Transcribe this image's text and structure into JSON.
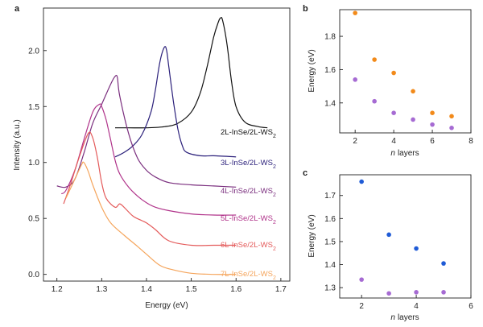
{
  "chart_data": [
    {
      "panel": "a",
      "type": "line",
      "xlabel": "Energy (eV)",
      "ylabel": "Intensity (a.u.)",
      "xlim": [
        1.17,
        1.72
      ],
      "ylim": [
        -0.06,
        2.38
      ],
      "xticks": [
        "1.2",
        "1.3",
        "1.4",
        "1.5",
        "1.6",
        "1.7"
      ],
      "yticks": [
        "0.0",
        "0.5",
        "1.0",
        "1.5",
        "2.0"
      ],
      "series": [
        {
          "name": "2L-InSe/2L-WS",
          "sub": "2",
          "color": "#111111",
          "x": [
            1.33,
            1.36,
            1.4,
            1.44,
            1.47,
            1.5,
            1.52,
            1.535,
            1.55,
            1.56,
            1.565,
            1.57,
            1.58,
            1.59,
            1.6,
            1.62,
            1.65,
            1.67
          ],
          "y": [
            1.31,
            1.31,
            1.31,
            1.32,
            1.35,
            1.45,
            1.62,
            1.85,
            2.12,
            2.25,
            2.29,
            2.27,
            2.05,
            1.72,
            1.5,
            1.36,
            1.32,
            1.31
          ]
        },
        {
          "name": "3L-InSe/2L-WS",
          "sub": "2",
          "color": "#2a1f7a",
          "x": [
            1.33,
            1.35,
            1.37,
            1.39,
            1.41,
            1.42,
            1.43,
            1.44,
            1.445,
            1.45,
            1.46,
            1.47,
            1.48,
            1.49,
            1.52,
            1.55,
            1.6
          ],
          "y": [
            1.05,
            1.09,
            1.15,
            1.25,
            1.45,
            1.65,
            1.9,
            2.03,
            2.0,
            1.85,
            1.55,
            1.3,
            1.15,
            1.09,
            1.06,
            1.06,
            1.05
          ]
        },
        {
          "name": "4L-InSe/2L-WS",
          "sub": "2",
          "color": "#7a2e7e",
          "x": [
            1.2,
            1.22,
            1.24,
            1.26,
            1.28,
            1.3,
            1.32,
            1.33,
            1.335,
            1.34,
            1.36,
            1.38,
            1.4,
            1.42,
            1.45,
            1.5,
            1.55,
            1.6
          ],
          "y": [
            0.79,
            0.78,
            0.85,
            1.08,
            1.35,
            1.52,
            1.7,
            1.77,
            1.76,
            1.6,
            1.26,
            1.04,
            0.93,
            0.87,
            0.82,
            0.8,
            0.79,
            0.78
          ]
        },
        {
          "name": "5L-InSe/2L-WS",
          "sub": "2",
          "color": "#b0338a",
          "x": [
            1.21,
            1.22,
            1.24,
            1.26,
            1.28,
            1.295,
            1.3,
            1.31,
            1.32,
            1.33,
            1.34,
            1.36,
            1.38,
            1.4,
            1.42,
            1.45,
            1.5,
            1.55,
            1.6
          ],
          "y": [
            0.72,
            0.75,
            0.93,
            1.2,
            1.45,
            1.52,
            1.5,
            1.38,
            1.2,
            1.02,
            0.9,
            0.78,
            0.7,
            0.64,
            0.6,
            0.57,
            0.54,
            0.53,
            0.53
          ]
        },
        {
          "name": "6L-InSe/2L-WS",
          "sub": "2",
          "color": "#e45a5a",
          "x": [
            1.215,
            1.23,
            1.25,
            1.27,
            1.28,
            1.29,
            1.3,
            1.31,
            1.33,
            1.34,
            1.35,
            1.37,
            1.39,
            1.4,
            1.42,
            1.45,
            1.5,
            1.55,
            1.6
          ],
          "y": [
            0.63,
            0.8,
            1.05,
            1.26,
            1.22,
            1.05,
            0.82,
            0.68,
            0.6,
            0.63,
            0.6,
            0.52,
            0.48,
            0.46,
            0.4,
            0.3,
            0.26,
            0.26,
            0.26
          ]
        },
        {
          "name": "7L-InSe/2L-WS",
          "sub": "2",
          "color": "#f5a55c",
          "x": [
            1.22,
            1.24,
            1.255,
            1.26,
            1.27,
            1.28,
            1.3,
            1.32,
            1.35,
            1.38,
            1.4,
            1.43,
            1.46,
            1.5,
            1.55,
            1.6
          ],
          "y": [
            0.68,
            0.85,
            0.98,
            1.0,
            0.92,
            0.8,
            0.6,
            0.46,
            0.35,
            0.25,
            0.18,
            0.08,
            0.04,
            0.01,
            0.0,
            0.0
          ]
        }
      ]
    },
    {
      "panel": "b",
      "type": "scatter",
      "xlabel": "layers",
      "xlabel_italic": "n",
      "ylabel": "Energy (eV)",
      "xlim": [
        1.2,
        8
      ],
      "ylim": [
        1.22,
        1.96
      ],
      "xticks": [
        "2",
        "4",
        "6",
        "8"
      ],
      "yticks": [
        "1.4",
        "1.6",
        "1.8"
      ],
      "series": [
        {
          "name": "orange",
          "color": "#f28a1a",
          "x": [
            2,
            3,
            4,
            5,
            6,
            7
          ],
          "y": [
            1.94,
            1.66,
            1.58,
            1.47,
            1.34,
            1.32
          ]
        },
        {
          "name": "purple",
          "color": "#a66bd3",
          "x": [
            2,
            3,
            4,
            5,
            6,
            7
          ],
          "y": [
            1.54,
            1.41,
            1.34,
            1.3,
            1.27,
            1.25
          ]
        }
      ]
    },
    {
      "panel": "c",
      "type": "scatter",
      "xlabel": "layers",
      "xlabel_italic": "n",
      "ylabel": "Energy (eV)",
      "xlim": [
        1.2,
        6
      ],
      "ylim": [
        1.255,
        1.79
      ],
      "xticks": [
        "2",
        "4",
        "6"
      ],
      "yticks": [
        "1.3",
        "1.4",
        "1.5",
        "1.6",
        "1.7"
      ],
      "series": [
        {
          "name": "blue",
          "color": "#1f5bd6",
          "x": [
            2,
            3,
            4,
            5
          ],
          "y": [
            1.76,
            1.53,
            1.47,
            1.405
          ]
        },
        {
          "name": "purple",
          "color": "#a66bd3",
          "x": [
            2,
            3,
            4,
            5
          ],
          "y": [
            1.335,
            1.275,
            1.28,
            1.28
          ]
        }
      ]
    }
  ]
}
